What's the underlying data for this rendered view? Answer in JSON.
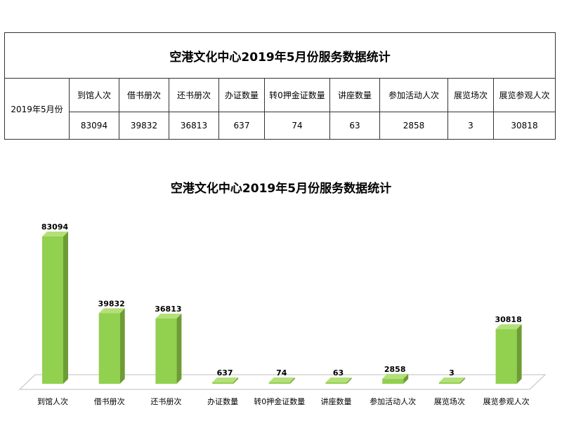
{
  "table": {
    "title": "空港文化中心2019年5月份服务数据统计",
    "row_label": "2019年5月份",
    "headers": [
      "到馆人次",
      "借书册次",
      "还书册次",
      "办证数量",
      "转0押金证数量",
      "讲座数量",
      "参加活动人次",
      "展览场次",
      "展览参观人次"
    ],
    "values": [
      "83094",
      "39832",
      "36813",
      "637",
      "74",
      "63",
      "2858",
      "3",
      "30818"
    ]
  },
  "chart_data": {
    "type": "bar",
    "title": "空港文化中心2019年5月份服务数据统计",
    "categories": [
      "到馆人次",
      "借书册次",
      "还书册次",
      "办证数量",
      "转0押金证数量",
      "讲座数量",
      "参加活动人次",
      "展览场次",
      "展览参观人次"
    ],
    "values": [
      83094,
      39832,
      36813,
      637,
      74,
      63,
      2858,
      3,
      30818
    ],
    "data_labels": [
      "83094",
      "39832",
      "36813",
      "637",
      "74",
      "63",
      "2858",
      "3",
      "30818"
    ],
    "xlabel": "",
    "ylabel": "",
    "ylim": [
      0,
      90000
    ],
    "grid": false,
    "legend": "none",
    "bar_color_front": "#92d050",
    "bar_color_side": "#6e9c34",
    "bar_color_top": "#b4e07a",
    "floor_color": "#ffffff",
    "floor_stroke": "#bfbfbf"
  }
}
